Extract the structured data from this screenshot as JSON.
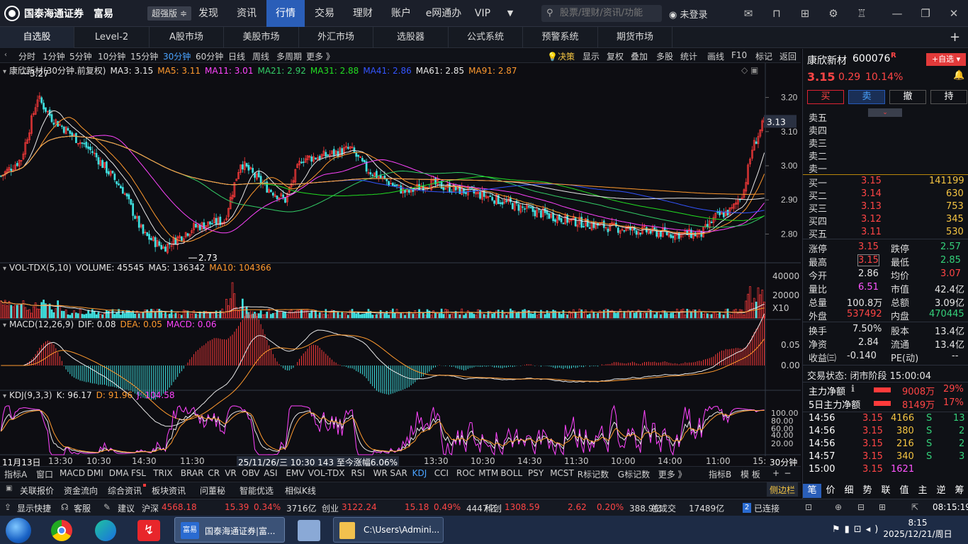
{
  "topbar": {
    "brand": "国泰海通证券",
    "brand2": "富易",
    "edition": "超强版",
    "nav": [
      "发现",
      "资讯",
      "行情",
      "交易",
      "理财",
      "账户",
      "e网通办",
      "VIP"
    ],
    "active": "行情",
    "search_placeholder": "股票/理财/资讯/功能",
    "login": "未登录"
  },
  "tabs": [
    "自选股",
    "Level-2",
    "A股市场",
    "美股市场",
    "外汇市场",
    "选股器",
    "公式系统",
    "预警系统",
    "期货市场"
  ],
  "periods": [
    "分时",
    "1分钟",
    "5分钟",
    "10分钟",
    "15分钟",
    "30分钟",
    "60分钟",
    "日线",
    "周线",
    "多周期",
    "更多 》"
  ],
  "active_period": "30分钟",
  "tools": [
    "决策",
    "显示",
    "复权",
    "叠加",
    "多股",
    "统计",
    "画线",
    "F10",
    "标记",
    "返回"
  ],
  "ma_legend": {
    "title": "康欣新材(30分钟.前复权)",
    "items": [
      {
        "label": "MA3: 3.15",
        "color": "#e8e8e8"
      },
      {
        "label": "MA5: 3.11",
        "color": "#ff9a2e"
      },
      {
        "label": "MA11: 3.01",
        "color": "#ff44ff"
      },
      {
        "label": "MA21: 2.92",
        "color": "#33cc66"
      },
      {
        "label": "MA31: 2.88",
        "color": "#22dd22"
      },
      {
        "label": "MA41: 2.86",
        "color": "#3355ff"
      },
      {
        "label": "MA61: 2.85",
        "color": "#e8e8e8"
      },
      {
        "label": "MA91: 2.87",
        "color": "#ff9a2e"
      }
    ]
  },
  "price_labels": [
    "3.27",
    "2.73",
    "3.13"
  ],
  "price_axis": [
    "3.20",
    "3.10",
    "3.00",
    "2.90",
    "2.80"
  ],
  "vol_legend": {
    "title": "VOL-TDX(5,10)",
    "items": [
      {
        "label": "VOLUME: 45545",
        "color": "#e8e8e8"
      },
      {
        "label": "MA5: 136342",
        "color": "#e8e8e8"
      },
      {
        "label": "MA10: 104366",
        "color": "#ff9a2e"
      }
    ]
  },
  "vol_axis": [
    "40000",
    "20000",
    "X10"
  ],
  "macd_legend": {
    "title": "MACD(12,26,9)",
    "items": [
      {
        "label": "DIF: 0.08",
        "color": "#e8e8e8"
      },
      {
        "label": "DEA: 0.05",
        "color": "#ff9a2e"
      },
      {
        "label": "MACD: 0.06",
        "color": "#ff44ff"
      }
    ]
  },
  "macd_axis": [
    "0.05",
    "0.00"
  ],
  "kdj_legend": {
    "title": "KDJ(9,3,3)",
    "items": [
      {
        "label": "K: 96.17",
        "color": "#e8e8e8"
      },
      {
        "label": "D: 91.96",
        "color": "#ff9a2e"
      },
      {
        "label": "J: 104.58",
        "color": "#ff44ff"
      }
    ]
  },
  "kdj_axis": [
    "100.00",
    "80.00",
    "60.00",
    "40.00",
    "20.00"
  ],
  "time_axis": [
    "11月13日",
    "13:30",
    "10:30",
    "14:30",
    "11:30",
    "25/11/26/三 10:30 143 至今涨幅6.06%",
    "13:30",
    "10:30",
    "14:30",
    "11:30",
    "10:00",
    "14:00",
    "11:00",
    "15:"
  ],
  "period_tag": "30分钟",
  "indicators": [
    "指标A",
    "窗口",
    "MACD",
    "DMI",
    "DMA",
    "FSL",
    "TRIX",
    "BRAR",
    "CR",
    "VR",
    "OBV",
    "ASI",
    "EMV",
    "VOL-TDX",
    "RSI",
    "WR",
    "SAR",
    "KDJ",
    "CCI",
    "ROC",
    "MTM",
    "BOLL",
    "PSY",
    "MCST",
    "R标记数",
    "G标记数",
    "更多 》",
    "指标B",
    "模 板",
    "+",
    "−"
  ],
  "active_indicator": "KDJ",
  "bottom_tabs": [
    "关联报价",
    "资金流向",
    "综合资讯",
    "板块资讯",
    "问董秘",
    "智能优选",
    "相似K线"
  ],
  "side_label": "侧边栏",
  "stock": {
    "name": "康欣新材",
    "code": "600076",
    "badge": "R",
    "add": "+自选",
    "price": "3.15",
    "change": "0.29",
    "pct": "10.14%",
    "buy": "买",
    "sell": "卖",
    "cancel": "撤",
    "hold": "持"
  },
  "asks": [
    "卖五",
    "卖四",
    "卖三",
    "卖二",
    "卖一"
  ],
  "bids": [
    {
      "l": "买一",
      "p": "3.15",
      "v": "141199"
    },
    {
      "l": "买二",
      "p": "3.14",
      "v": "630"
    },
    {
      "l": "买三",
      "p": "3.13",
      "v": "753"
    },
    {
      "l": "买四",
      "p": "3.12",
      "v": "345"
    },
    {
      "l": "买五",
      "p": "3.11",
      "v": "530"
    }
  ],
  "stats": [
    {
      "l": "涨停",
      "v": "3.15",
      "c": "red",
      "l2": "跌停",
      "v2": "2.57",
      "c2": "green"
    },
    {
      "l": "最高",
      "v": "3.15",
      "c": "red",
      "l2": "最低",
      "v2": "2.85",
      "c2": "green"
    },
    {
      "l": "今开",
      "v": "2.86",
      "c": "white",
      "l2": "均价",
      "v2": "3.07",
      "c2": "red"
    },
    {
      "l": "量比",
      "v": "6.51",
      "c": "magenta",
      "l2": "市值",
      "v2": "42.4亿",
      "c2": "white"
    },
    {
      "l": "总量",
      "v": "100.8万",
      "c": "white",
      "l2": "总额",
      "v2": "3.09亿",
      "c2": "white"
    },
    {
      "l": "外盘",
      "v": "537492",
      "c": "red",
      "l2": "内盘",
      "v2": "470445",
      "c2": "green"
    }
  ],
  "stats2": [
    {
      "l": "换手",
      "v": "7.50%",
      "l2": "股本",
      "v2": "13.4亿"
    },
    {
      "l": "净资",
      "v": "2.84",
      "l2": "流通",
      "v2": "13.4亿"
    },
    {
      "l": "收益㈢",
      "v": "-0.140",
      "l2": "PE(动)",
      "v2": "--"
    }
  ],
  "trade_status": "交易状态: 闭市阶段 15:00:04",
  "fund": [
    {
      "l": "主力净额",
      "v": "9008万",
      "p": "29%"
    },
    {
      "l": "5日主力净额",
      "v": "8149万",
      "p": "17%"
    }
  ],
  "ticks": [
    {
      "t": "14:56",
      "p": "3.15",
      "v": "4166",
      "s": "S",
      "n": "13"
    },
    {
      "t": "14:56",
      "p": "3.15",
      "v": "380",
      "s": "S",
      "n": "2"
    },
    {
      "t": "14:56",
      "p": "3.15",
      "v": "216",
      "s": "S",
      "n": "2"
    },
    {
      "t": "14:57",
      "p": "3.15",
      "v": "340",
      "s": "S",
      "n": "3"
    },
    {
      "t": "15:00",
      "p": "3.15",
      "v": "1621",
      "s": "",
      "n": ""
    }
  ],
  "right_tabs": [
    "笔",
    "价",
    "细",
    "势",
    "联",
    "值",
    "主",
    "逆",
    "筹"
  ],
  "status": {
    "quick": "显示快捷",
    "service": "客服",
    "suggest": "建议",
    "idx": [
      {
        "n": "沪深",
        "v": "4568.18",
        "c": "15.39",
        "p": "0.34%",
        "a": "3716亿"
      },
      {
        "n": "创业",
        "v": "3122.24",
        "c": "15.18",
        "p": "0.49%",
        "a": "4447亿"
      },
      {
        "n": "科创",
        "v": "1308.59",
        "c": "2.62",
        "p": "0.20%",
        "a": "388.9亿"
      }
    ],
    "total_label": "总成交",
    "total": "17489亿",
    "conn_num": "2",
    "conn": "已连接",
    "time": "08:15:19"
  },
  "taskbar": {
    "app1": "国泰海通证券|富...",
    "app2": "C:\\Users\\Admini...",
    "time": "8:15",
    "date": "2025/12/21/周日"
  },
  "colors": {
    "up": "#ff3b3b",
    "down": "#3fe0e0",
    "bg": "#0d0d12"
  },
  "chart_data": {
    "type": "candlestick",
    "ylim": [
      2.72,
      3.28
    ],
    "high": 3.27,
    "low": 2.73,
    "last": 3.13
  }
}
